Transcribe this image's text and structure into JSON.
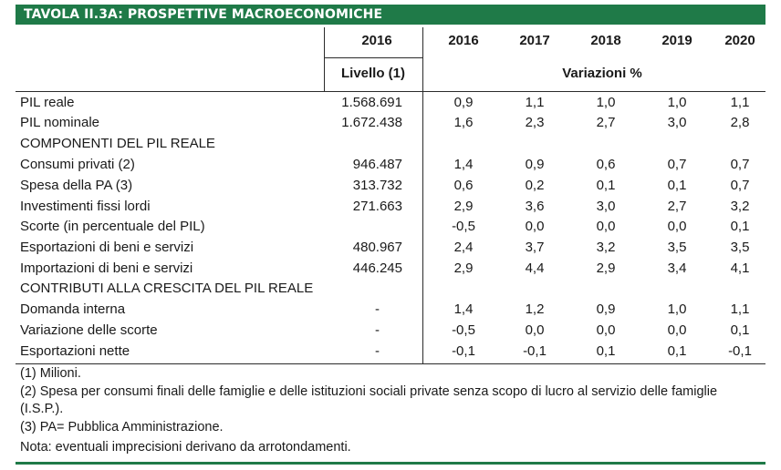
{
  "title": "TAVOLA II.3A: PROSPETTIVE MACROECONOMICHE",
  "header": {
    "level_year": "2016",
    "years": [
      "2016",
      "2017",
      "2018",
      "2019",
      "2020"
    ],
    "level_label": "Livello (1)",
    "variation_label": "Variazioni %"
  },
  "rows": [
    {
      "label": "PIL reale",
      "level": "1.568.691",
      "values": [
        "0,9",
        "1,1",
        "1,0",
        "1,0",
        "1,1"
      ]
    },
    {
      "label": "PIL nominale",
      "level": "1.672.438",
      "values": [
        "1,6",
        "2,3",
        "2,7",
        "3,0",
        "2,8"
      ]
    },
    {
      "label": "COMPONENTI DEL PIL REALE",
      "level": "",
      "values": [
        "",
        "",
        "",
        "",
        ""
      ]
    },
    {
      "label": "Consumi privati (2)",
      "level": "946.487",
      "values": [
        "1,4",
        "0,9",
        "0,6",
        "0,7",
        "0,7"
      ]
    },
    {
      "label": "Spesa della PA (3)",
      "level": "313.732",
      "values": [
        "0,6",
        "0,2",
        "0,1",
        "0,1",
        "0,7"
      ]
    },
    {
      "label": "Investimenti fissi lordi",
      "level": "271.663",
      "values": [
        "2,9",
        "3,6",
        "3,0",
        "2,7",
        "3,2"
      ]
    },
    {
      "label": "Scorte (in percentuale del PIL)",
      "level": "",
      "values": [
        "-0,5",
        "0,0",
        "0,0",
        "0,0",
        "0,1"
      ]
    },
    {
      "label": "Esportazioni di beni e servizi",
      "level": "480.967",
      "values": [
        "2,4",
        "3,7",
        "3,2",
        "3,5",
        "3,5"
      ]
    },
    {
      "label": "Importazioni di beni e servizi",
      "level": "446.245",
      "values": [
        "2,9",
        "4,4",
        "2,9",
        "3,4",
        "4,1"
      ]
    },
    {
      "label": "CONTRIBUTI ALLA CRESCITA DEL PIL REALE",
      "level": "",
      "values": [
        "",
        "",
        "",
        "",
        ""
      ]
    },
    {
      "label": "Domanda interna",
      "level": "-",
      "values": [
        "1,4",
        "1,2",
        "0,9",
        "1,0",
        "1,1"
      ]
    },
    {
      "label": "Variazione delle scorte",
      "level": "-",
      "values": [
        "-0,5",
        "0,0",
        "0,0",
        "0,0",
        "0,1"
      ]
    },
    {
      "label": "Esportazioni nette",
      "level": "-",
      "values": [
        "-0,1",
        "-0,1",
        "0,1",
        "0,1",
        "-0,1"
      ]
    }
  ],
  "notes": [
    "(1) Milioni.",
    "(2) Spesa per consumi finali delle famiglie e delle istituzioni sociali private senza scopo di lucro al servizio delle famiglie (I.S.P.).",
    "(3) PA= Pubblica Amministrazione.",
    "Nota: eventuali imprecisioni derivano da arrotondamenti."
  ],
  "colors": {
    "accent": "#1f7a48"
  }
}
